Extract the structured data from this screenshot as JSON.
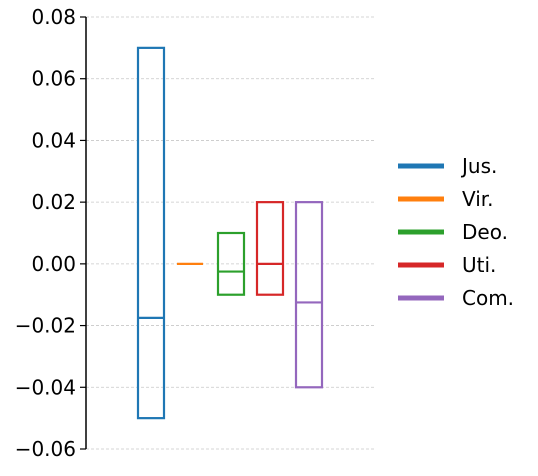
{
  "chart_data": {
    "type": "box",
    "title": "",
    "xlabel": "",
    "ylabel": "",
    "ylim": [
      -0.06,
      0.08
    ],
    "yticks": [
      -0.06,
      -0.04,
      -0.02,
      0.0,
      0.02,
      0.04,
      0.06,
      0.08
    ],
    "ytick_labels": [
      "−0.06",
      "−0.04",
      "−0.02",
      "0.00",
      "0.02",
      "0.04",
      "0.06",
      "0.08"
    ],
    "grid": "horizontal dashed",
    "legend_position": "center-right",
    "series": [
      {
        "name": "Jus.",
        "color": "#1f77b4",
        "low": -0.05,
        "median": -0.0175,
        "high": 0.07
      },
      {
        "name": "Vir.",
        "color": "#ff7f0e",
        "low": 0.0,
        "median": 0.0,
        "high": 0.0
      },
      {
        "name": "Deo.",
        "color": "#2ca02c",
        "low": -0.01,
        "median": -0.0025,
        "high": 0.01
      },
      {
        "name": "Uti.",
        "color": "#d62728",
        "low": -0.01,
        "median": 0.0,
        "high": 0.02
      },
      {
        "name": "Com.",
        "color": "#9467bd",
        "low": -0.04,
        "median": -0.0125,
        "high": 0.02
      }
    ]
  }
}
